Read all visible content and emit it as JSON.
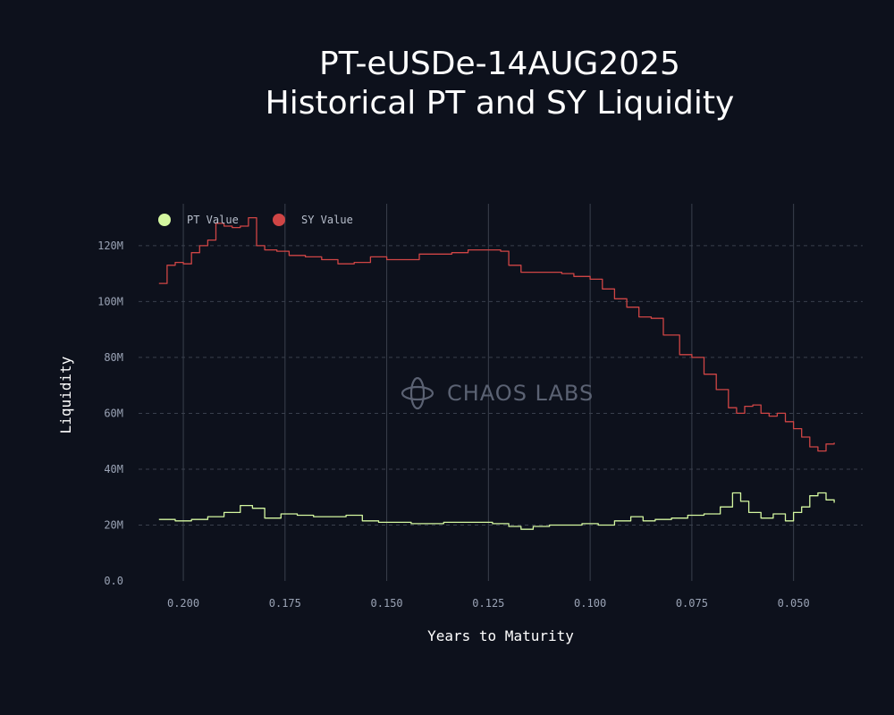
{
  "title_line1": "PT-eUSDe-14AUG2025",
  "title_line2": "Historical PT and SY Liquidity",
  "watermark": "CHAOS LABS",
  "chart_data": {
    "type": "line",
    "title": "PT-eUSDe-14AUG2025 Historical PT and SY Liquidity",
    "xlabel": "Years to Maturity",
    "ylabel": "Liquidity",
    "xlim": [
      0.211,
      0.033
    ],
    "ylim": [
      0,
      135000000
    ],
    "x_reversed": true,
    "x_ticks": [
      0.2,
      0.175,
      0.15,
      0.125,
      0.1,
      0.075,
      0.05
    ],
    "x_tick_labels": [
      "0.200",
      "0.175",
      "0.150",
      "0.125",
      "0.100",
      "0.075",
      "0.050"
    ],
    "y_ticks": [
      0,
      20000000,
      40000000,
      60000000,
      80000000,
      100000000,
      120000000
    ],
    "y_tick_labels": [
      "0.0",
      "20M",
      "40M",
      "60M",
      "80M",
      "100M",
      "120M"
    ],
    "grid": {
      "x": "solid",
      "y": "dashed"
    },
    "legend_position": "top-left",
    "series": [
      {
        "name": "PT Value",
        "color": "#d4f7a0",
        "x": [
          0.206,
          0.202,
          0.198,
          0.194,
          0.19,
          0.186,
          0.183,
          0.18,
          0.176,
          0.172,
          0.168,
          0.164,
          0.16,
          0.156,
          0.152,
          0.148,
          0.144,
          0.14,
          0.136,
          0.132,
          0.128,
          0.124,
          0.12,
          0.117,
          0.114,
          0.11,
          0.106,
          0.102,
          0.098,
          0.094,
          0.09,
          0.087,
          0.084,
          0.08,
          0.076,
          0.072,
          0.068,
          0.065,
          0.063,
          0.061,
          0.058,
          0.055,
          0.052,
          0.05,
          0.048,
          0.046,
          0.044,
          0.042,
          0.04
        ],
        "values": [
          22000000,
          21500000,
          22000000,
          23000000,
          24500000,
          27000000,
          26000000,
          22500000,
          24000000,
          23500000,
          23000000,
          23000000,
          23500000,
          21500000,
          21000000,
          21000000,
          20500000,
          20500000,
          21000000,
          21000000,
          21000000,
          20500000,
          19500000,
          18500000,
          19500000,
          20000000,
          20000000,
          20500000,
          20000000,
          21500000,
          23000000,
          21500000,
          22000000,
          22500000,
          23500000,
          24000000,
          26500000,
          31500000,
          28500000,
          24500000,
          22500000,
          24000000,
          21500000,
          24500000,
          26500000,
          30500000,
          31500000,
          29000000,
          28000000
        ]
      },
      {
        "name": "SY Value",
        "color": "#cf4545",
        "x": [
          0.206,
          0.204,
          0.202,
          0.2,
          0.198,
          0.196,
          0.194,
          0.192,
          0.19,
          0.188,
          0.186,
          0.184,
          0.182,
          0.18,
          0.177,
          0.174,
          0.17,
          0.166,
          0.162,
          0.158,
          0.154,
          0.15,
          0.146,
          0.142,
          0.138,
          0.134,
          0.13,
          0.126,
          0.122,
          0.12,
          0.117,
          0.114,
          0.11,
          0.107,
          0.104,
          0.1,
          0.097,
          0.094,
          0.091,
          0.088,
          0.085,
          0.082,
          0.078,
          0.075,
          0.072,
          0.069,
          0.066,
          0.064,
          0.062,
          0.06,
          0.058,
          0.056,
          0.054,
          0.052,
          0.05,
          0.048,
          0.046,
          0.044,
          0.042,
          0.04
        ],
        "values": [
          106500000,
          113000000,
          114000000,
          113500000,
          117500000,
          120000000,
          122000000,
          128000000,
          127000000,
          126500000,
          127000000,
          130000000,
          120000000,
          118500000,
          118000000,
          116500000,
          116000000,
          115000000,
          113500000,
          114000000,
          116000000,
          115000000,
          115000000,
          117000000,
          117000000,
          117500000,
          118500000,
          118500000,
          118000000,
          113000000,
          110500000,
          110500000,
          110500000,
          110000000,
          109000000,
          108000000,
          104500000,
          101000000,
          98000000,
          94500000,
          94000000,
          88000000,
          81000000,
          80000000,
          74000000,
          68500000,
          62000000,
          60000000,
          62500000,
          63000000,
          60000000,
          59000000,
          60000000,
          57000000,
          54500000,
          51500000,
          48000000,
          46500000,
          49000000,
          49500000
        ]
      }
    ]
  }
}
